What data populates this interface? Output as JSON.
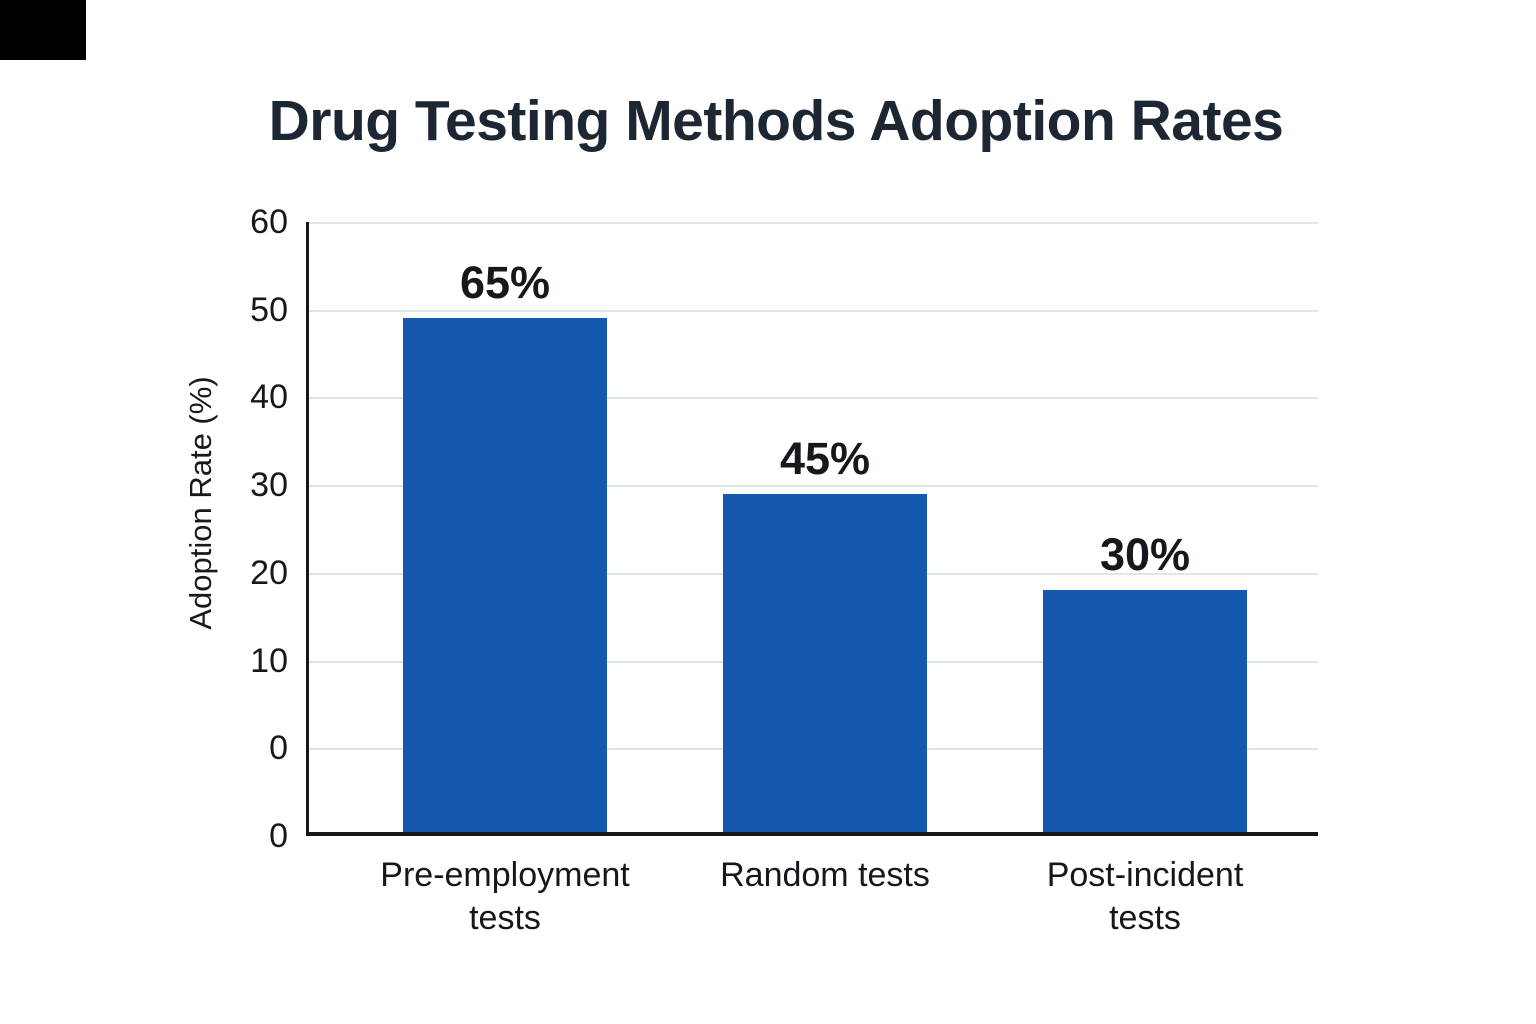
{
  "title": "Drug Testing Methods Adoption Rates",
  "chart_data": {
    "type": "bar",
    "title": "Drug Testing Methods Adoption Rates",
    "xlabel": "",
    "ylabel": "Adoption Rate (%)",
    "categories": [
      "Pre-employment tests",
      "Random tests",
      "Post-incident tests"
    ],
    "categories_display": [
      "Pre-employment\ntests",
      "Random tests",
      "Post-incident\ntests"
    ],
    "values": [
      65,
      45,
      30
    ],
    "value_labels": [
      "65%",
      "45%",
      "30%"
    ],
    "bar_drawn_heights_axis_units": [
      49,
      29,
      18
    ],
    "baseline_below_zero_units": 10,
    "yticks": [
      "60",
      "50",
      "40",
      "30",
      "20",
      "10",
      "0",
      "0"
    ],
    "ylim": [
      0,
      60
    ],
    "grid": true,
    "legend": "none",
    "bar_color": "#1458af",
    "gridline_color": "#e0e5ea",
    "axis_color": "#15181c",
    "text_color": "#15191e"
  },
  "decorations": {
    "corner_rectangle_color": "#000000"
  }
}
